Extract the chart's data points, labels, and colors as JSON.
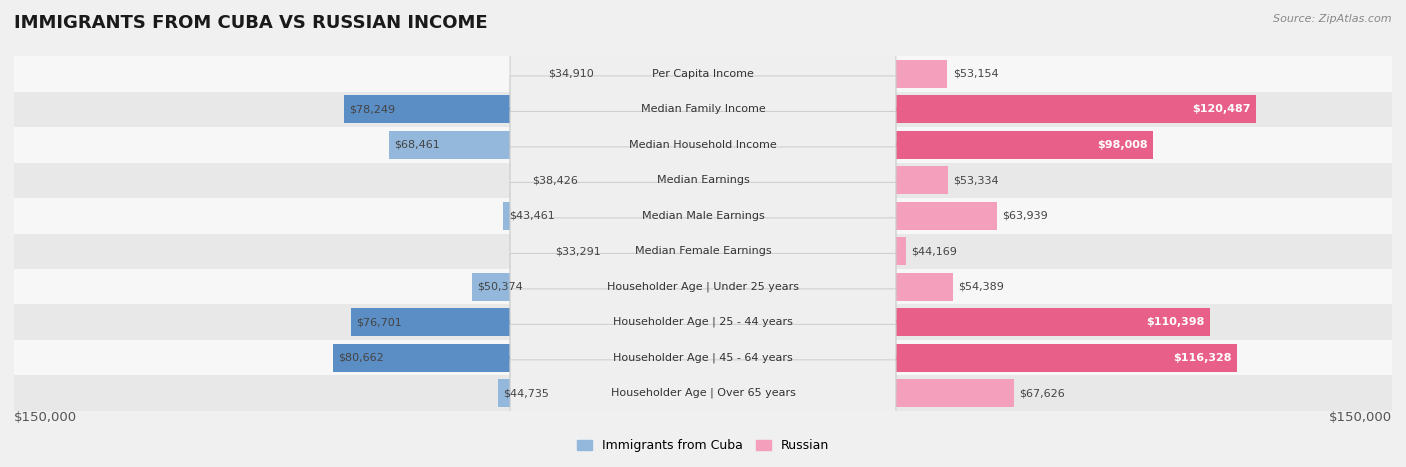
{
  "title": "IMMIGRANTS FROM CUBA VS RUSSIAN INCOME",
  "source": "Source: ZipAtlas.com",
  "categories": [
    "Per Capita Income",
    "Median Family Income",
    "Median Household Income",
    "Median Earnings",
    "Median Male Earnings",
    "Median Female Earnings",
    "Householder Age | Under 25 years",
    "Householder Age | 25 - 44 years",
    "Householder Age | 45 - 64 years",
    "Householder Age | Over 65 years"
  ],
  "cuba_values": [
    34910,
    78249,
    68461,
    38426,
    43461,
    33291,
    50374,
    76701,
    80662,
    44735
  ],
  "russian_values": [
    53154,
    120487,
    98008,
    53334,
    63939,
    44169,
    54389,
    110398,
    116328,
    67626
  ],
  "cuba_color_normal": "#93b8dc",
  "cuba_color_highlight": "#5b8ec4",
  "russian_color_normal": "#f4a0bc",
  "russian_color_highlight": "#e8608a",
  "max_value": 150000,
  "bg_color": "#f0f0f0",
  "row_bg_light": "#f7f7f7",
  "row_bg_dark": "#e8e8e8",
  "label_bg": "#efefef",
  "label_edge": "#cccccc",
  "legend_cuba_color": "#93b8dc",
  "legend_russian_color": "#f4a0bc",
  "title_fontsize": 13,
  "source_fontsize": 8,
  "label_fontsize": 8,
  "value_fontsize": 8
}
